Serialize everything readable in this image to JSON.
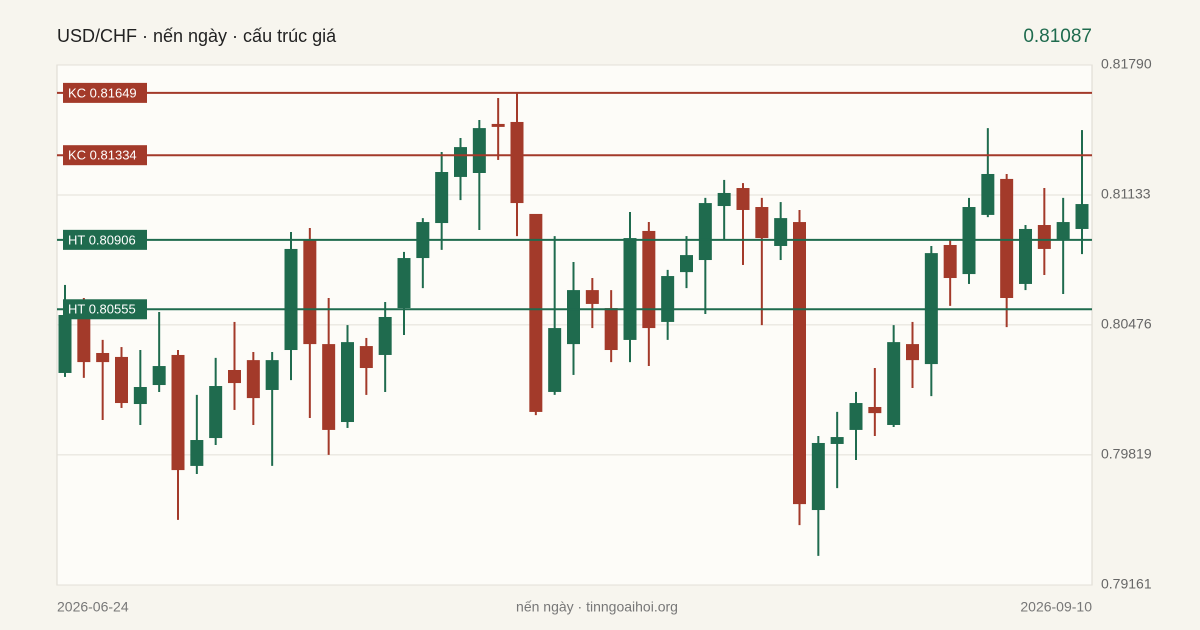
{
  "chart_data": {
    "type": "candlestick",
    "title": "USD/CHF · nến ngày · cấu trúc giá",
    "last_price": 0.81087,
    "footer": "nến ngày · tinngoaihoi.org",
    "categories": [
      "2026-06-24",
      null,
      null,
      null,
      null,
      null,
      null,
      null,
      null,
      null,
      null,
      null,
      null,
      null,
      null,
      null,
      null,
      null,
      null,
      null,
      null,
      null,
      null,
      null,
      null,
      null,
      null,
      null,
      null,
      null,
      null,
      null,
      null,
      null,
      null,
      null,
      null,
      null,
      null,
      null,
      null,
      null,
      null,
      null,
      null,
      null,
      null,
      null,
      null,
      null,
      null,
      null,
      null,
      null,
      "2026-09-10"
    ],
    "open": [
      0.80233,
      0.80561,
      0.80334,
      0.80314,
      0.80076,
      0.80172,
      0.80324,
      0.79763,
      0.79904,
      0.80248,
      0.80298,
      0.80147,
      0.80349,
      0.8091,
      0.80379,
      0.79985,
      0.80369,
      0.80324,
      0.80561,
      0.80814,
      0.80991,
      0.81224,
      0.81244,
      0.81492,
      0.81502,
      0.81037,
      0.80137,
      0.80379,
      0.80652,
      0.80561,
      0.804,
      0.80951,
      0.80491,
      0.80743,
      0.80804,
      0.81077,
      0.81168,
      0.81072,
      0.80875,
      0.80996,
      0.7954,
      0.79874,
      0.79945,
      0.80061,
      0.7997,
      0.80379,
      0.80278,
      0.8088,
      0.80733,
      0.81032,
      0.81214,
      0.80683,
      0.80981,
      0.80905,
      0.80961
    ],
    "high": [
      0.80678,
      0.80612,
      0.804,
      0.80364,
      0.80349,
      0.80541,
      0.80349,
      0.80122,
      0.80309,
      0.80491,
      0.80339,
      0.80339,
      0.80946,
      0.80966,
      0.80612,
      0.80475,
      0.8041,
      0.80592,
      0.80845,
      0.81016,
      0.8135,
      0.81421,
      0.81512,
      0.81623,
      0.81653,
      0.81037,
      0.80925,
      0.80794,
      0.80713,
      0.80652,
      0.81047,
      0.80996,
      0.80754,
      0.80925,
      0.81118,
      0.81209,
      0.81193,
      0.81118,
      0.81097,
      0.81057,
      0.79914,
      0.80036,
      0.80137,
      0.80258,
      0.80475,
      0.80491,
      0.80875,
      0.80905,
      0.81118,
      0.81471,
      0.81239,
      0.80981,
      0.81168,
      0.81118,
      0.81461
    ],
    "low": [
      0.80213,
      0.80208,
      0.79995,
      0.80056,
      0.7997,
      0.80137,
      0.7949,
      0.79722,
      0.79869,
      0.80046,
      0.7997,
      0.79763,
      0.80197,
      0.80005,
      0.79819,
      0.79955,
      0.80122,
      0.80137,
      0.80425,
      0.80662,
      0.80855,
      0.81107,
      0.80956,
      0.8131,
      0.80925,
      0.8002,
      0.80122,
      0.80223,
      0.8046,
      0.80288,
      0.80288,
      0.80268,
      0.804,
      0.80662,
      0.80531,
      0.80905,
      0.80779,
      0.80475,
      0.80804,
      0.79464,
      0.79308,
      0.79651,
      0.79793,
      0.79914,
      0.7996,
      0.80157,
      0.80116,
      0.80572,
      0.80683,
      0.81021,
      0.80465,
      0.80652,
      0.80728,
      0.80632,
      0.80834
    ],
    "close": [
      0.80526,
      0.80288,
      0.80288,
      0.80081,
      0.80162,
      0.80268,
      0.79742,
      0.79894,
      0.80167,
      0.80182,
      0.80106,
      0.80298,
      0.8086,
      0.80379,
      0.79945,
      0.80389,
      0.80258,
      0.80516,
      0.80814,
      0.80996,
      0.81249,
      0.81375,
      0.81471,
      0.81477,
      0.81092,
      0.80036,
      0.8046,
      0.80652,
      0.80582,
      0.80349,
      0.80915,
      0.8046,
      0.80723,
      0.80829,
      0.81092,
      0.81143,
      0.81057,
      0.80915,
      0.81016,
      0.7957,
      0.79879,
      0.79909,
      0.80081,
      0.8003,
      0.80389,
      0.80298,
      0.80839,
      0.80713,
      0.81072,
      0.81239,
      0.80612,
      0.80961,
      0.8086,
      0.80996,
      0.81087
    ],
    "up_color": "#1f6b4e",
    "down_color": "#a33a2a",
    "levels": [
      {
        "label": "KC 0.81649",
        "value": 0.81649,
        "color": "#a33a2a"
      },
      {
        "label": "KC 0.81334",
        "value": 0.81334,
        "color": "#a33a2a"
      },
      {
        "label": "HT 0.80906",
        "value": 0.80906,
        "color": "#1f6b4e"
      },
      {
        "label": "HT 0.80555",
        "value": 0.80555,
        "color": "#1f6b4e"
      }
    ],
    "ylim": [
      0.79161,
      0.8179
    ],
    "yticks": [
      {
        "value": 0.8179,
        "label": "0.81790"
      },
      0.81133,
      0.80476,
      0.79819,
      0.79161
    ],
    "grid": true
  }
}
